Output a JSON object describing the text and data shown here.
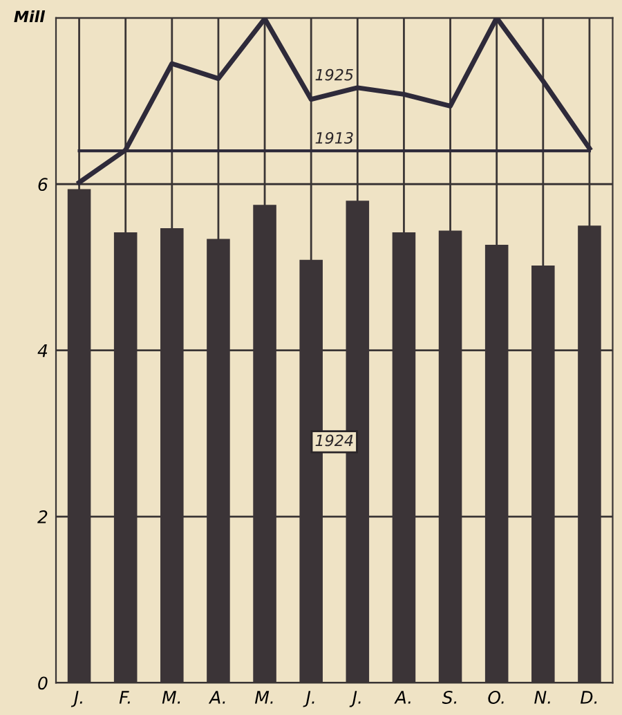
{
  "chart_data": {
    "type": "bar",
    "ylabel": "Mill",
    "categories": [
      "J.",
      "F.",
      "M.",
      "A.",
      "M.",
      "J.",
      "J.",
      "A.",
      "S.",
      "O.",
      "N.",
      "D."
    ],
    "series": [
      {
        "name": "1924",
        "color": "#3b3437",
        "values": [
          5.94,
          5.42,
          5.47,
          5.34,
          5.75,
          5.09,
          5.8,
          5.42,
          5.44,
          5.27,
          5.02,
          5.5
        ]
      },
      {
        "name": "1925",
        "type": "line",
        "color": "#2e2a3a",
        "values": [
          6.02,
          6.41,
          7.45,
          7.27,
          7.99,
          7.02,
          7.16,
          7.08,
          6.94,
          8.0,
          7.24,
          6.43
        ]
      },
      {
        "name": "1913",
        "type": "line",
        "color": "#2e2a3a",
        "values": [
          6.4,
          6.4,
          6.4,
          6.4,
          6.4,
          6.4,
          6.4,
          6.4,
          6.4,
          6.4,
          6.4,
          6.4
        ]
      }
    ],
    "ylim": [
      0,
      8
    ],
    "yticks": [
      0,
      2,
      4,
      6,
      {
        "value": 8,
        "label": null
      }
    ],
    "grid": true,
    "marker": "none",
    "line_style": "solid"
  }
}
